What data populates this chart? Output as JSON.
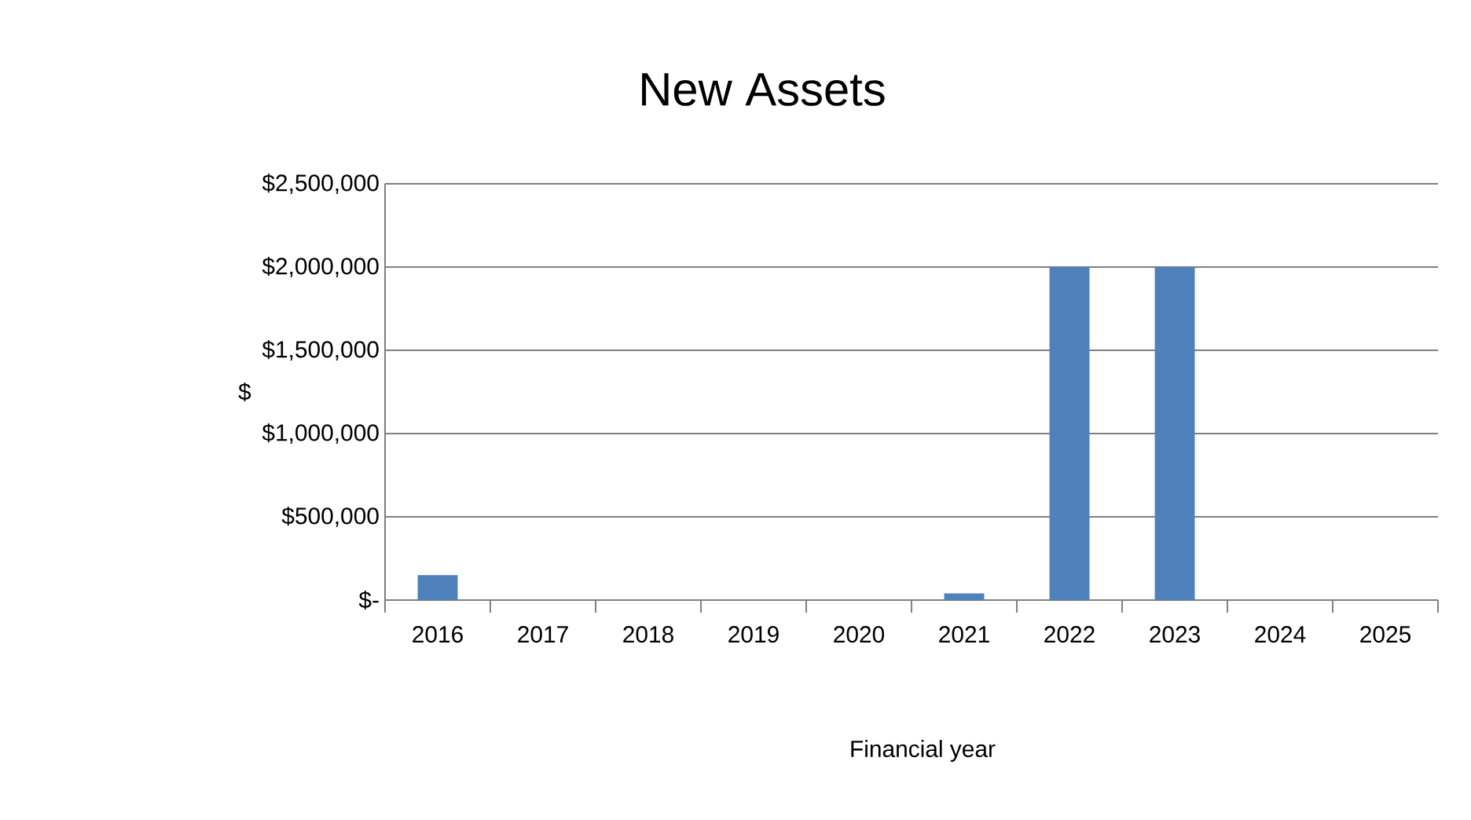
{
  "chart_data": {
    "type": "bar",
    "title": "New Assets",
    "xlabel": "Financial year",
    "ylabel": "$",
    "categories": [
      "2016",
      "2017",
      "2018",
      "2019",
      "2020",
      "2021",
      "2022",
      "2023",
      "2024",
      "2025"
    ],
    "values": [
      150000,
      0,
      0,
      0,
      0,
      40000,
      2000000,
      2000000,
      0,
      0
    ],
    "color": "#4f81bd",
    "ylim": [
      0,
      2500000
    ],
    "yticks": [
      {
        "value": 0,
        "label": "$-"
      },
      {
        "value": 500000,
        "label": "$500,000"
      },
      {
        "value": 1000000,
        "label": "$1,000,000"
      },
      {
        "value": 1500000,
        "label": "$1,500,000"
      },
      {
        "value": 2000000,
        "label": "$2,000,000"
      },
      {
        "value": 2500000,
        "label": "$2,500,000"
      }
    ],
    "grid": "y"
  }
}
